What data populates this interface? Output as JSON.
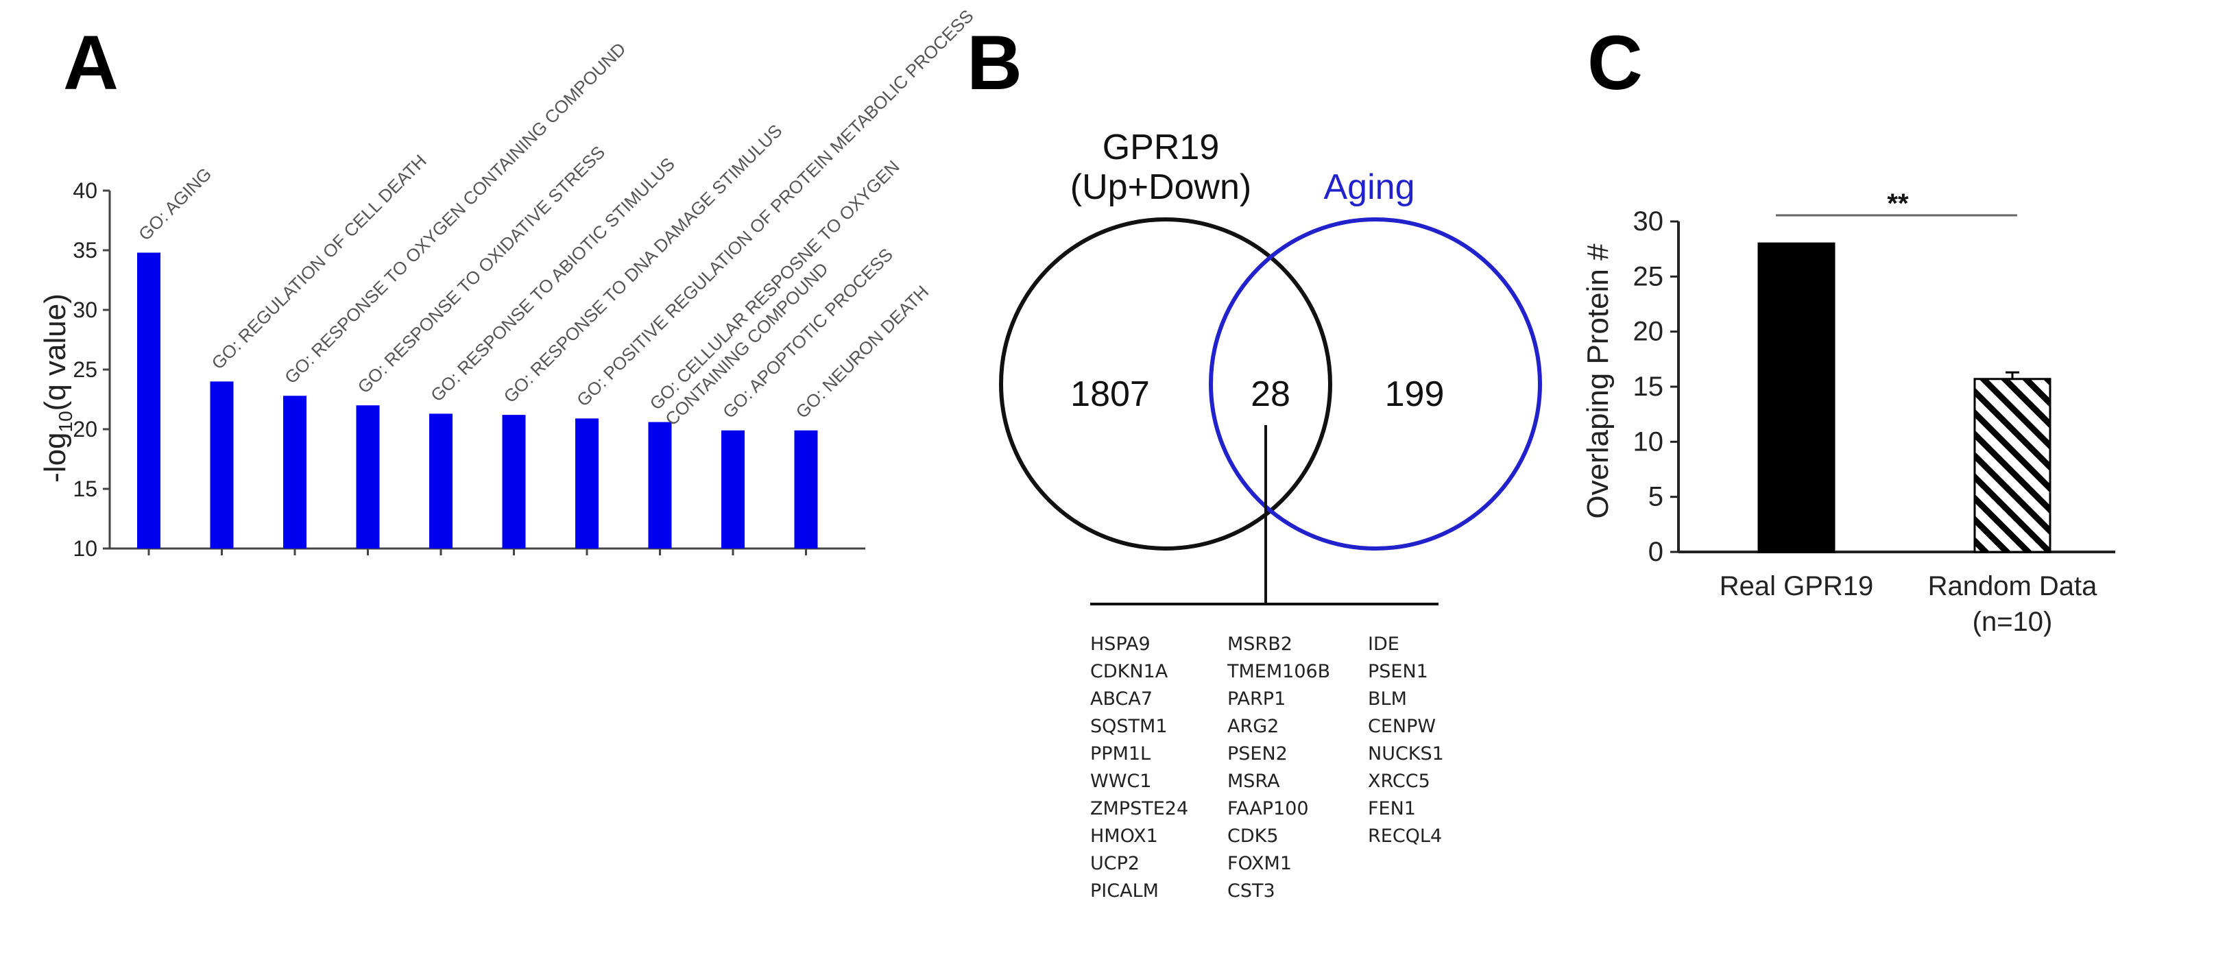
{
  "chart_data": [
    {
      "panel": "A",
      "type": "bar",
      "ylabel_main": "-log",
      "ylabel_sub": "10",
      "ylabel_tail": "(q value)",
      "ylim": [
        10,
        40
      ],
      "yticks": [
        10,
        15,
        20,
        25,
        30,
        35,
        40
      ],
      "color": "#0000ee",
      "categories": [
        "GO: AGING",
        "GO: REGULATION OF CELL DEATH",
        "GO: RESPONSE TO OXYGEN CONTAINING COMPOUND",
        "GO: RESPONSE TO OXIDATIVE STRESS",
        "GO: RESPONSE TO ABIOTIC STIMULUS",
        "GO: RESPONSE TO DNA DAMAGE STIMULUS",
        "GO: POSITIVE REGULATION OF PROTEIN METABOLIC PROCESS",
        "GO: CELLULAR RESPOSNE TO OXYGEN|CONTAINING COMPOUND",
        "GO: APOPTOTIC PROCESS",
        "GO: NEURON DEATH"
      ],
      "values": [
        34.8,
        24.0,
        22.8,
        22.0,
        21.3,
        21.2,
        20.9,
        20.6,
        19.9,
        19.9
      ]
    },
    {
      "panel": "B",
      "type": "venn",
      "set_left_line1": "GPR19",
      "set_left_line2": "(Up+Down)",
      "set_right": "Aging",
      "left_only": "1807",
      "overlap": "28",
      "right_only": "199",
      "left_color": "#111111",
      "right_color": "#2222cc",
      "genes": [
        [
          "HSPA9",
          "CDKN1A",
          "ABCA7",
          "SQSTM1",
          "PPM1L",
          "WWC1",
          "ZMPSTE24",
          "HMOX1",
          "UCP2",
          "PICALM"
        ],
        [
          "MSRB2",
          "TMEM106B",
          "PARP1",
          "ARG2",
          "PSEN2",
          "MSRA",
          "FAAP100",
          "CDK5",
          "FOXM1",
          "CST3"
        ],
        [
          "IDE",
          "PSEN1",
          "BLM",
          "CENPW",
          "NUCKS1",
          "XRCC5",
          "FEN1",
          "RECQL4"
        ]
      ]
    },
    {
      "panel": "C",
      "type": "bar",
      "ylabel": "Overlaping Protein #",
      "ylim": [
        0,
        30
      ],
      "yticks": [
        0,
        5,
        10,
        15,
        20,
        25,
        30
      ],
      "categories": [
        "Real GPR19",
        "Random Data"
      ],
      "category_sub": [
        "",
        "(n=10)"
      ],
      "values": [
        28,
        15.7
      ],
      "errors": [
        0,
        0.6
      ],
      "fills": [
        "solid",
        "hatched"
      ],
      "significance": "**"
    }
  ]
}
